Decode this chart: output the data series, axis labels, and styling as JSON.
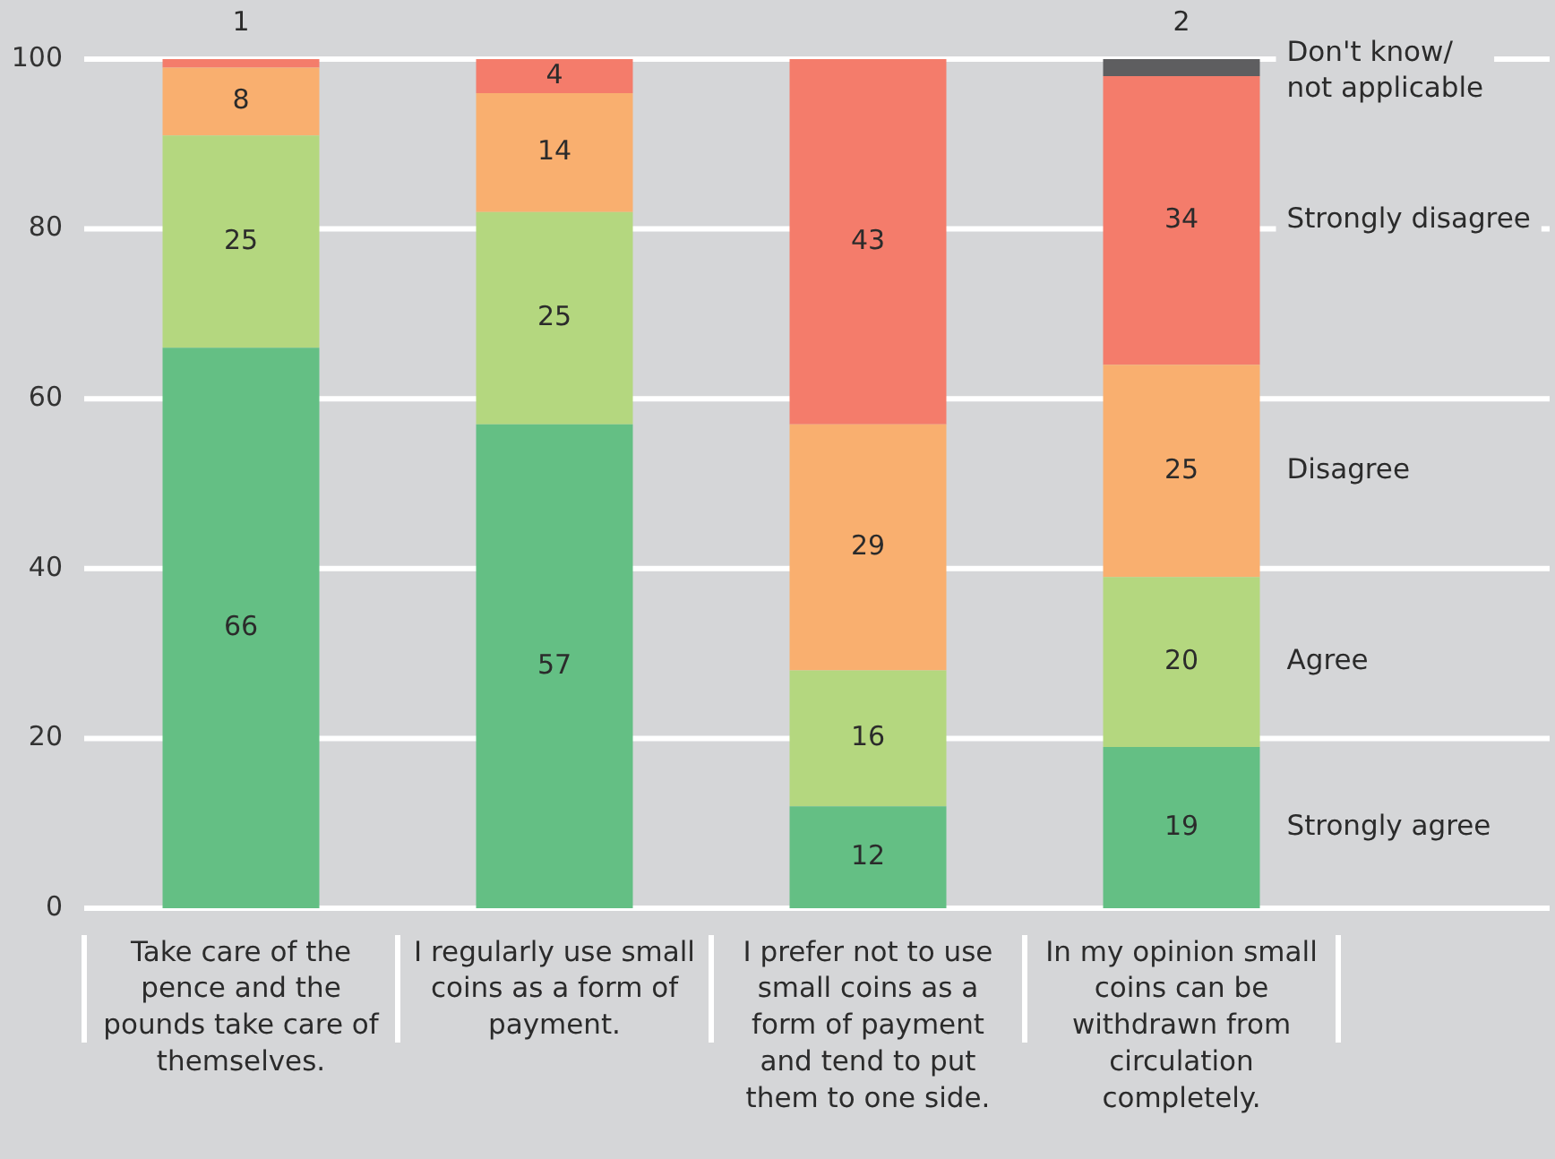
{
  "chart_data": {
    "type": "bar",
    "categories": [
      "Take care of the pence and the pounds take care of themselves.",
      "I regularly use small coins as a form of payment.",
      "I prefer not to use small coins as a form of payment and tend to put them to one side.",
      "In my opinion small coins can be withdrawn from circulation completely."
    ],
    "series": [
      {
        "name": "Strongly agree",
        "color": "#64bf84",
        "values": [
          66,
          57,
          12,
          19
        ]
      },
      {
        "name": "Agree",
        "color": "#b4d77f",
        "values": [
          25,
          25,
          16,
          20
        ]
      },
      {
        "name": "Disagree",
        "color": "#f9af6f",
        "values": [
          8,
          14,
          29,
          25
        ]
      },
      {
        "name": "Strongly disagree",
        "color": "#f47c6b",
        "values": [
          1,
          4,
          43,
          34
        ]
      },
      {
        "name": "Don't know/ not applicable",
        "color": "#5e5e60",
        "values": [
          null,
          null,
          null,
          2
        ]
      }
    ],
    "stacked": true,
    "ylim": [
      0,
      100
    ],
    "yticks": [
      0,
      20,
      40,
      60,
      80,
      100
    ],
    "grid": "y",
    "legend": "right",
    "data_labels": true
  }
}
